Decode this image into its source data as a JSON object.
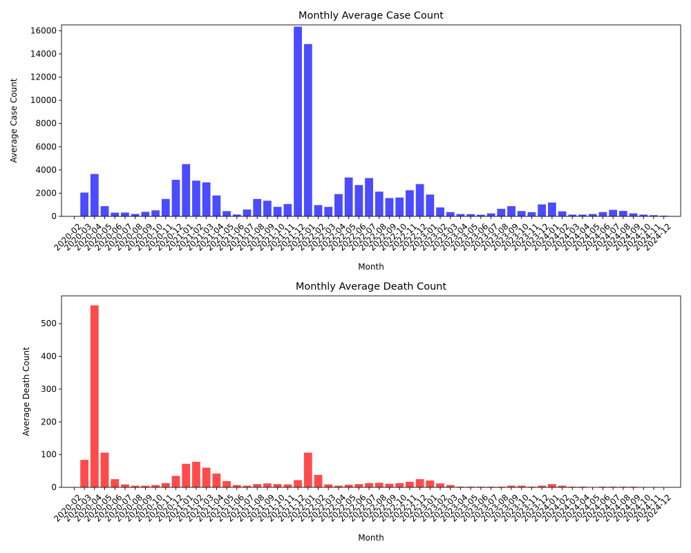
{
  "chart_data": [
    {
      "type": "bar",
      "title": "Monthly Average Case Count",
      "xlabel": "Month",
      "ylabel": "Average Case Count",
      "ylim": [
        0,
        16500
      ],
      "yticks": [
        0,
        2000,
        4000,
        6000,
        8000,
        10000,
        12000,
        14000,
        16000
      ],
      "color": "#4b4bff",
      "grid": false,
      "categories": [
        "2020-02",
        "2020-03",
        "2020-04",
        "2020-05",
        "2020-06",
        "2020-07",
        "2020-08",
        "2020-09",
        "2020-10",
        "2020-11",
        "2020-12",
        "2021-01",
        "2021-02",
        "2021-03",
        "2021-04",
        "2021-05",
        "2021-06",
        "2021-07",
        "2021-08",
        "2021-09",
        "2021-10",
        "2021-11",
        "2021-12",
        "2022-01",
        "2022-02",
        "2022-03",
        "2022-04",
        "2022-05",
        "2022-06",
        "2022-07",
        "2022-08",
        "2022-09",
        "2022-10",
        "2022-11",
        "2022-12",
        "2023-01",
        "2023-02",
        "2023-03",
        "2023-04",
        "2023-05",
        "2023-06",
        "2023-07",
        "2023-08",
        "2023-09",
        "2023-10",
        "2023-11",
        "2023-12",
        "2024-01",
        "2024-02",
        "2024-03",
        "2024-04",
        "2024-05",
        "2024-06",
        "2024-07",
        "2024-08",
        "2024-09",
        "2024-10",
        "2024-11",
        "2024-12"
      ],
      "values": [
        0,
        2050,
        3650,
        880,
        320,
        330,
        210,
        390,
        520,
        1500,
        3150,
        4500,
        3080,
        2930,
        1800,
        450,
        160,
        590,
        1500,
        1350,
        820,
        1060,
        16350,
        14850,
        970,
        820,
        1920,
        3350,
        2700,
        3300,
        2130,
        1580,
        1620,
        2250,
        2780,
        1880,
        770,
        370,
        200,
        190,
        140,
        260,
        650,
        880,
        460,
        360,
        1030,
        1190,
        430,
        150,
        150,
        200,
        370,
        560,
        470,
        260,
        150,
        100,
        60
      ]
    },
    {
      "type": "bar",
      "title": "Monthly Average Death Count",
      "xlabel": "Month",
      "ylabel": "Average Death Count",
      "ylim": [
        0,
        585
      ],
      "yticks": [
        0,
        100,
        200,
        300,
        400,
        500
      ],
      "color": "#ff4b4b",
      "grid": false,
      "categories": [
        "2020-02",
        "2020-03",
        "2020-04",
        "2020-05",
        "2020-06",
        "2020-07",
        "2020-08",
        "2020-09",
        "2020-10",
        "2020-11",
        "2020-12",
        "2021-01",
        "2021-02",
        "2021-03",
        "2021-04",
        "2021-05",
        "2021-06",
        "2021-07",
        "2021-08",
        "2021-09",
        "2021-10",
        "2021-11",
        "2021-12",
        "2022-01",
        "2022-02",
        "2022-03",
        "2022-04",
        "2022-05",
        "2022-06",
        "2022-07",
        "2022-08",
        "2022-09",
        "2022-10",
        "2022-11",
        "2022-12",
        "2023-01",
        "2023-02",
        "2023-03",
        "2023-04",
        "2023-05",
        "2023-06",
        "2023-07",
        "2023-08",
        "2023-09",
        "2023-10",
        "2023-11",
        "2023-12",
        "2024-01",
        "2024-02",
        "2024-03",
        "2024-04",
        "2024-05",
        "2024-06",
        "2024-07",
        "2024-08",
        "2024-09",
        "2024-10",
        "2024-11",
        "2024-12"
      ],
      "values": [
        0,
        84,
        556,
        106,
        25,
        9,
        5,
        5,
        7,
        13,
        35,
        72,
        78,
        60,
        42,
        19,
        7,
        5,
        10,
        12,
        10,
        9,
        22,
        106,
        38,
        9,
        5,
        8,
        10,
        13,
        14,
        11,
        13,
        17,
        25,
        21,
        12,
        7,
        2,
        2,
        2,
        2,
        2,
        5,
        5,
        2,
        5,
        10,
        5,
        2,
        2,
        1,
        2,
        2,
        2,
        2,
        1,
        1,
        0
      ]
    }
  ]
}
